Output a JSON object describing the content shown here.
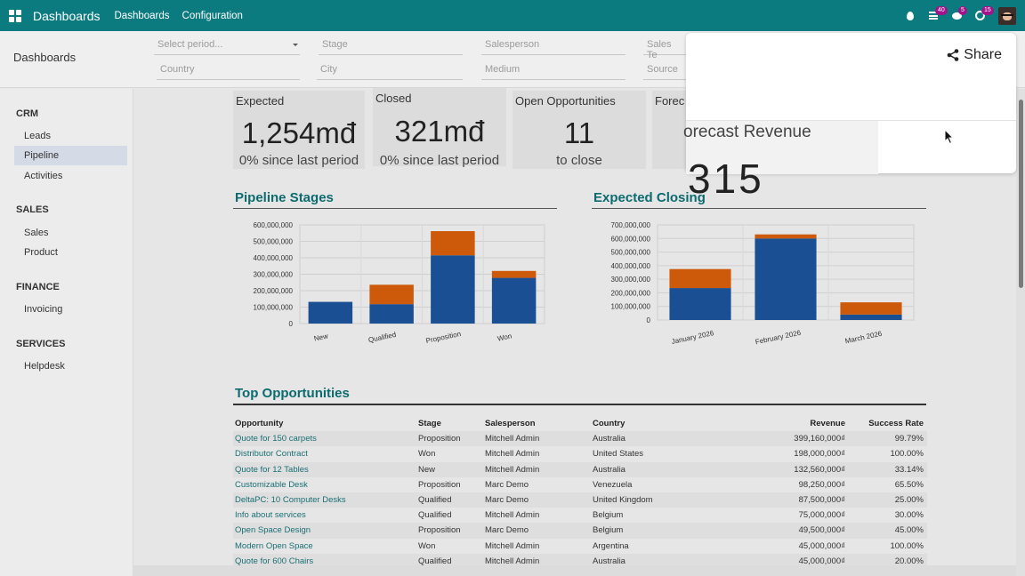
{
  "navbar": {
    "brand": "Dashboards",
    "links": [
      "Dashboards",
      "Configuration"
    ],
    "badges": {
      "activity": "40",
      "messages": "5",
      "clock": "15"
    }
  },
  "control": {
    "title": "Dashboards",
    "filters": {
      "period": "Select period...",
      "stage": "Stage",
      "salesperson": "Salesperson",
      "sales_team": "Sales Te",
      "country": "Country",
      "city": "City",
      "medium": "Medium",
      "source": "Source"
    }
  },
  "sidebar": {
    "sections": [
      {
        "title": "CRM",
        "items": [
          "Leads",
          "Pipeline",
          "Activities"
        ]
      },
      {
        "title": "SALES",
        "items": [
          "Sales",
          "Product"
        ]
      },
      {
        "title": "FINANCE",
        "items": [
          "Invoicing"
        ]
      },
      {
        "title": "SERVICES",
        "items": [
          "Helpdesk"
        ]
      }
    ],
    "active": "Pipeline"
  },
  "kpis": [
    {
      "label": "Expected",
      "value": "1,254mđ",
      "sub": "0% since last period"
    },
    {
      "label": "Closed",
      "value": "321mđ",
      "sub": "0% since last period"
    },
    {
      "label": "Open Opportunities",
      "value": "11",
      "sub": "to close"
    },
    {
      "label": "Forec",
      "value": "",
      "sub": ""
    }
  ],
  "popup": {
    "share_label": "Share",
    "kpi_label": "orecast Revenue",
    "kpi_value": "315"
  },
  "sections": {
    "pipeline": "Pipeline Stages",
    "closing": "Expected Closing",
    "top": "Top Opportunities"
  },
  "colors": {
    "accent": "#0c7b80",
    "series_blue": "#1a4f93",
    "series_orange": "#cc5a0a"
  },
  "chart_data": [
    {
      "type": "bar",
      "stacked": true,
      "title": "Pipeline Stages",
      "categories": [
        "New",
        "Qualified",
        "Proposition",
        "Won"
      ],
      "series": [
        {
          "values": [
            132000000,
            118000000,
            415000000,
            278000000
          ]
        },
        {
          "values": [
            0,
            118000000,
            147000000,
            42000000
          ]
        }
      ],
      "ylim": [
        0,
        600000000
      ],
      "yticks": [
        "0",
        "100,000,000",
        "200,000,000",
        "300,000,000",
        "400,000,000",
        "500,000,000",
        "600,000,000"
      ],
      "grid": true
    },
    {
      "type": "bar",
      "stacked": true,
      "title": "Expected Closing",
      "categories": [
        "January 2026",
        "February 2026",
        "March 2026"
      ],
      "series": [
        {
          "values": [
            235000000,
            600000000,
            40000000
          ]
        },
        {
          "values": [
            140000000,
            30000000,
            90000000
          ]
        }
      ],
      "ylim": [
        0,
        700000000
      ],
      "yticks": [
        "0",
        "100,000,000",
        "200,000,000",
        "300,000,000",
        "400,000,000",
        "500,000,000",
        "600,000,000",
        "700,000,000"
      ],
      "grid": true
    }
  ],
  "table": {
    "headers": [
      "Opportunity",
      "Stage",
      "Salesperson",
      "Country",
      "Revenue",
      "Success Rate"
    ],
    "rows": [
      [
        "Quote for 150 carpets",
        "Proposition",
        "Mitchell Admin",
        "Australia",
        "399,160,000₫",
        "99.79%"
      ],
      [
        "Distributor Contract",
        "Won",
        "Mitchell Admin",
        "United States",
        "198,000,000₫",
        "100.00%"
      ],
      [
        "Quote for 12 Tables",
        "New",
        "Mitchell Admin",
        "Australia",
        "132,560,000₫",
        "33.14%"
      ],
      [
        "Customizable Desk",
        "Proposition",
        "Marc Demo",
        "Venezuela",
        "98,250,000₫",
        "65.50%"
      ],
      [
        "DeltaPC: 10 Computer Desks",
        "Qualified",
        "Marc Demo",
        "United Kingdom",
        "87,500,000₫",
        "25.00%"
      ],
      [
        "Info about services",
        "Qualified",
        "Mitchell Admin",
        "Belgium",
        "75,000,000₫",
        "30.00%"
      ],
      [
        "Open Space Design",
        "Proposition",
        "Marc Demo",
        "Belgium",
        "49,500,000₫",
        "45.00%"
      ],
      [
        "Modern Open Space",
        "Won",
        "Mitchell Admin",
        "Argentina",
        "45,000,000₫",
        "100.00%"
      ],
      [
        "Quote for 600 Chairs",
        "Qualified",
        "Mitchell Admin",
        "Australia",
        "45,000,000₫",
        "20.00%"
      ]
    ]
  }
}
